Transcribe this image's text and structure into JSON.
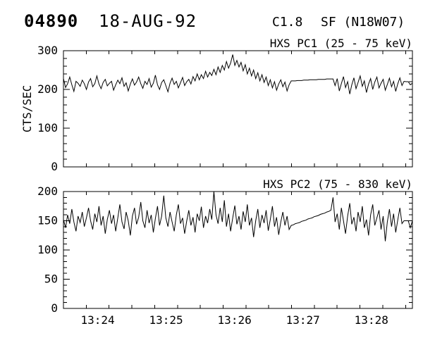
{
  "header": {
    "event_id": "04890",
    "date": "18-AUG-92",
    "goes_class": "C1.8",
    "flare_type_location": "SF (N18W07)"
  },
  "chart_data": [
    {
      "type": "line",
      "title": "HXS PC1 (25 - 75 keV)",
      "ylabel": "CTS/SEC",
      "ylim": [
        0,
        300
      ],
      "ytick_labels": [
        "0",
        "100",
        "200",
        "300"
      ],
      "yticks_major": [
        0,
        100,
        200,
        300
      ],
      "y_minor_step": 20,
      "xlim_time": [
        "13:23:30",
        "13:28:36"
      ],
      "x_duration_sec": 306,
      "x_major_ticks_sec": [
        30,
        90,
        150,
        210,
        270
      ],
      "x_major_tick_labels": [
        "13:24",
        "13:25",
        "13:26",
        "13:27",
        "13:28"
      ],
      "x_minor_step_sec": 20,
      "show_x_labels": false,
      "grid": false,
      "line_color": "#000000",
      "values": [
        228,
        205,
        215,
        232,
        212,
        195,
        221,
        216,
        208,
        224,
        215,
        200,
        219,
        228,
        207,
        215,
        235,
        214,
        202,
        218,
        226,
        209,
        216,
        221,
        198,
        212,
        224,
        215,
        230,
        208,
        217,
        196,
        214,
        227,
        211,
        219,
        232,
        215,
        203,
        221,
        213,
        228,
        206,
        216,
        237,
        212,
        200,
        218,
        225,
        210,
        194,
        216,
        229,
        213,
        221,
        204,
        217,
        231,
        210,
        220,
        226,
        214,
        233,
        222,
        240,
        225,
        238,
        228,
        247,
        232,
        244,
        236,
        252,
        238,
        258,
        244,
        262,
        250,
        272,
        255,
        268,
        290,
        262,
        275,
        258,
        270,
        248,
        264,
        240,
        255,
        235,
        250,
        228,
        243,
        222,
        238,
        218,
        232,
        210,
        225,
        204,
        220,
        198,
        214,
        225,
        207,
        219,
        196,
        212,
        222,
        222,
        222,
        223,
        223,
        223,
        224,
        224,
        224,
        225,
        225,
        225,
        225,
        226,
        226,
        226,
        226,
        227,
        227,
        227,
        227,
        210,
        228,
        196,
        215,
        233,
        205,
        220,
        188,
        212,
        230,
        202,
        218,
        235,
        208,
        222,
        192,
        214,
        228,
        200,
        219,
        232,
        204,
        216,
        226,
        198,
        213,
        229,
        207,
        221,
        195,
        215,
        230,
        210,
        221,
        220,
        220,
        212,
        216
      ]
    },
    {
      "type": "line",
      "title": "HXS PC2 (75 - 830 keV)",
      "ylabel": "",
      "ylim": [
        0,
        200
      ],
      "ytick_labels": [
        "0",
        "50",
        "100",
        "150",
        "200"
      ],
      "yticks_major": [
        0,
        50,
        100,
        150,
        200
      ],
      "y_minor_step": 10,
      "xlim_time": [
        "13:23:30",
        "13:28:36"
      ],
      "x_duration_sec": 306,
      "x_major_ticks_sec": [
        30,
        90,
        150,
        210,
        270
      ],
      "x_major_tick_labels": [
        "13:24",
        "13:25",
        "13:26",
        "13:27",
        "13:28"
      ],
      "x_minor_step_sec": 20,
      "show_x_labels": true,
      "grid": false,
      "line_color": "#000000",
      "values": [
        152,
        138,
        160,
        145,
        170,
        148,
        132,
        158,
        147,
        165,
        140,
        155,
        172,
        150,
        135,
        162,
        148,
        175,
        142,
        158,
        128,
        152,
        168,
        145,
        160,
        132,
        155,
        178,
        148,
        136,
        165,
        150,
        125,
        158,
        172,
        144,
        156,
        182,
        150,
        138,
        168,
        146,
        160,
        130,
        154,
        175,
        142,
        158,
        193,
        155,
        140,
        165,
        148,
        132,
        160,
        178,
        145,
        155,
        128,
        150,
        168,
        142,
        156,
        130,
        162,
        150,
        174,
        138,
        158,
        146,
        170,
        152,
        200,
        160,
        145,
        172,
        148,
        185,
        140,
        162,
        132,
        155,
        176,
        144,
        158,
        135,
        166,
        148,
        178,
        142,
        155,
        122,
        150,
        170,
        138,
        160,
        146,
        168,
        133,
        152,
        175,
        140,
        156,
        126,
        148,
        165,
        142,
        158,
        135,
        142,
        143,
        145,
        146,
        147,
        149,
        150,
        151,
        153,
        154,
        155,
        157,
        158,
        159,
        161,
        162,
        163,
        165,
        166,
        168,
        190,
        148,
        162,
        135,
        172,
        150,
        128,
        158,
        180,
        144,
        156,
        132,
        165,
        148,
        175,
        138,
        152,
        125,
        160,
        178,
        142,
        155,
        168,
        135,
        158,
        115,
        148,
        170,
        140,
        162,
        130,
        152,
        172,
        145,
        150,
        150,
        150,
        138,
        150
      ]
    }
  ]
}
